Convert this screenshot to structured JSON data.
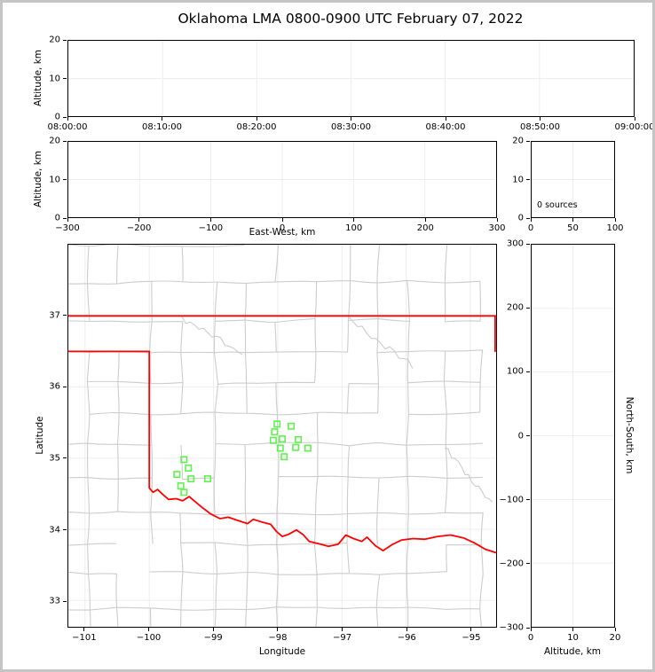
{
  "title": "Oklahoma LMA 0800-0900 UTC February 07, 2022",
  "colors": {
    "station_marker": "#5ef24e",
    "state_border": "#ff0000",
    "county_line": "#cccccc",
    "grid_line": "#ededed",
    "frame": "#c5c5c5"
  },
  "panels": {
    "time_height": {
      "ylabel": "Altitude, km",
      "yticks": [
        0,
        10,
        20
      ],
      "ylim": [
        0,
        20
      ],
      "xticks": [
        "08:00:00",
        "08:10:00",
        "08:20:00",
        "08:30:00",
        "08:40:00",
        "08:50:00",
        "09:00:00"
      ]
    },
    "ew_height": {
      "xlabel": "East-West, km",
      "ylabel": "Altitude, km",
      "xticks": [
        -300,
        -200,
        -100,
        0,
        100,
        200,
        300
      ],
      "xlim": [
        -300,
        300
      ],
      "yticks": [
        0,
        10,
        20
      ],
      "ylim": [
        0,
        20
      ]
    },
    "alt_histogram": {
      "annotation": "0 sources",
      "xticks": [
        0,
        50,
        100
      ],
      "xlim": [
        0,
        100
      ],
      "yticks": [
        0,
        10,
        20
      ],
      "ylim": [
        0,
        20
      ]
    },
    "plan_view": {
      "xlabel": "Longitude",
      "ylabel": "Latitude",
      "xticks": [
        -101,
        -100,
        -99,
        -98,
        -97,
        -96,
        -95
      ],
      "xlim": [
        -101.26,
        -94.6
      ],
      "yticks": [
        33,
        34,
        35,
        36,
        37
      ],
      "ylim": [
        32.63,
        38.0
      ]
    },
    "ns_height": {
      "xlabel": "Altitude, km",
      "ylabel": "North-South, km",
      "xticks": [
        0,
        10,
        20
      ],
      "xlim": [
        0,
        20
      ],
      "yticks": [
        -300,
        -200,
        -100,
        0,
        100,
        200,
        300
      ],
      "ylim": [
        -300,
        300
      ]
    }
  },
  "chart_data": {
    "type": "scatter",
    "title": "Oklahoma LMA 0800-0900 UTC February 07, 2022",
    "time_range_utc": [
      "08:00:00",
      "09:00:00"
    ],
    "altitude_range_km": [
      0,
      20
    ],
    "ew_range_km": [
      -300,
      300
    ],
    "ns_range_km": [
      -300,
      300
    ],
    "lon_range": [
      -101.26,
      -94.6
    ],
    "lat_range": [
      32.63,
      38.0
    ],
    "lightning_sources": {
      "count": 0,
      "points": []
    },
    "lma_stations": {
      "marker": "open-square",
      "color": "#5ef24e",
      "points_lon_lat": [
        [
          -98.01,
          35.48
        ],
        [
          -97.79,
          35.45
        ],
        [
          -98.05,
          35.37
        ],
        [
          -98.07,
          35.25
        ],
        [
          -97.93,
          35.27
        ],
        [
          -97.68,
          35.26
        ],
        [
          -97.96,
          35.14
        ],
        [
          -97.72,
          35.15
        ],
        [
          -97.53,
          35.14
        ],
        [
          -97.9,
          35.02
        ],
        [
          -99.46,
          34.98
        ],
        [
          -99.39,
          34.86
        ],
        [
          -99.57,
          34.77
        ],
        [
          -99.35,
          34.71
        ],
        [
          -99.09,
          34.71
        ],
        [
          -99.51,
          34.61
        ],
        [
          -99.46,
          34.52
        ]
      ]
    },
    "state_border": {
      "color": "#ff0000",
      "segments": [
        [
          [
            -101.26,
            37.0
          ],
          [
            -94.6,
            37.0
          ]
        ],
        [
          [
            -94.615,
            37.0
          ],
          [
            -94.615,
            36.5
          ]
        ],
        [
          [
            -101.26,
            36.5
          ],
          [
            -100.0,
            36.5
          ],
          [
            -100.0,
            34.58
          ],
          [
            -99.94,
            34.52
          ],
          [
            -99.87,
            34.56
          ],
          [
            -99.79,
            34.49
          ],
          [
            -99.7,
            34.42
          ],
          [
            -99.58,
            34.43
          ],
          [
            -99.48,
            34.4
          ],
          [
            -99.38,
            34.46
          ],
          [
            -99.3,
            34.4
          ],
          [
            -99.18,
            34.31
          ],
          [
            -99.05,
            34.22
          ],
          [
            -98.9,
            34.15
          ],
          [
            -98.77,
            34.17
          ],
          [
            -98.61,
            34.12
          ],
          [
            -98.47,
            34.08
          ],
          [
            -98.38,
            34.14
          ],
          [
            -98.24,
            34.1
          ],
          [
            -98.11,
            34.07
          ],
          [
            -98.02,
            33.97
          ],
          [
            -97.93,
            33.9
          ],
          [
            -97.83,
            33.93
          ],
          [
            -97.71,
            33.99
          ],
          [
            -97.61,
            33.93
          ],
          [
            -97.51,
            33.83
          ],
          [
            -97.37,
            33.8
          ],
          [
            -97.21,
            33.76
          ],
          [
            -97.06,
            33.79
          ],
          [
            -96.94,
            33.92
          ],
          [
            -96.82,
            33.87
          ],
          [
            -96.69,
            33.83
          ],
          [
            -96.61,
            33.89
          ],
          [
            -96.48,
            33.77
          ],
          [
            -96.36,
            33.7
          ],
          [
            -96.21,
            33.79
          ],
          [
            -96.07,
            33.85
          ],
          [
            -95.89,
            33.87
          ],
          [
            -95.71,
            33.86
          ],
          [
            -95.51,
            33.9
          ],
          [
            -95.31,
            33.92
          ],
          [
            -95.11,
            33.88
          ],
          [
            -94.94,
            33.81
          ],
          [
            -94.77,
            33.72
          ],
          [
            -94.6,
            33.67
          ]
        ]
      ]
    }
  }
}
